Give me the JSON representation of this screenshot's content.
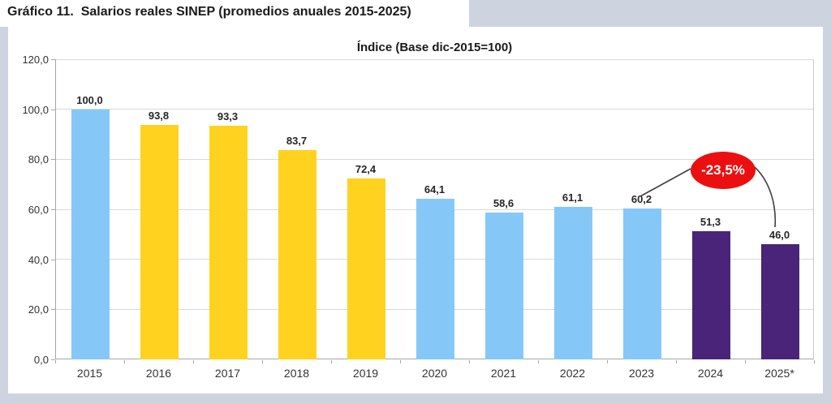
{
  "figure": {
    "title": "Gráfico 11.  Salarios reales SINEP (promedios anuales 2015-2025)"
  },
  "chart_data": {
    "type": "bar",
    "title": "Índice (Base dic-2015=100)",
    "categories": [
      "2015",
      "2016",
      "2017",
      "2018",
      "2019",
      "2020",
      "2021",
      "2022",
      "2023",
      "2024",
      "2025*"
    ],
    "values": [
      100.0,
      93.8,
      93.3,
      83.7,
      72.4,
      64.1,
      58.6,
      61.1,
      60.2,
      51.3,
      46.0
    ],
    "value_labels": [
      "100,0",
      "93,8",
      "93,3",
      "83,7",
      "72,4",
      "64,1",
      "58,6",
      "61,1",
      "60,2",
      "51,3",
      "46,0"
    ],
    "bar_colors": [
      "#85C8F8",
      "#FFD21F",
      "#FFD21F",
      "#FFD21F",
      "#FFD21F",
      "#85C8F8",
      "#85C8F8",
      "#85C8F8",
      "#85C8F8",
      "#4A2478",
      "#4A2478"
    ],
    "xlabel": "",
    "ylabel": "",
    "ylim": [
      0,
      120
    ],
    "ytick_step": 20,
    "ytick_labels": [
      "0,0",
      "20,0",
      "40,0",
      "60,0",
      "80,0",
      "100,0",
      "120,0"
    ],
    "grid": true,
    "legend": "none",
    "annotation": {
      "label": "-23,5%",
      "badge_color": "#EC0F0F",
      "text_color": "#ffffff",
      "from_category": "2023",
      "to_category": "2025*"
    }
  },
  "colors": {
    "page_background": "#CED3E0",
    "panel_background": "#ffffff",
    "blue_bar": "#85C8F8",
    "yellow_bar": "#FFD21F",
    "purple_bar": "#4A2478",
    "annotation_red": "#EC0F0F",
    "gridline": "#D9D9D9",
    "axis": "#A6A6A6"
  }
}
